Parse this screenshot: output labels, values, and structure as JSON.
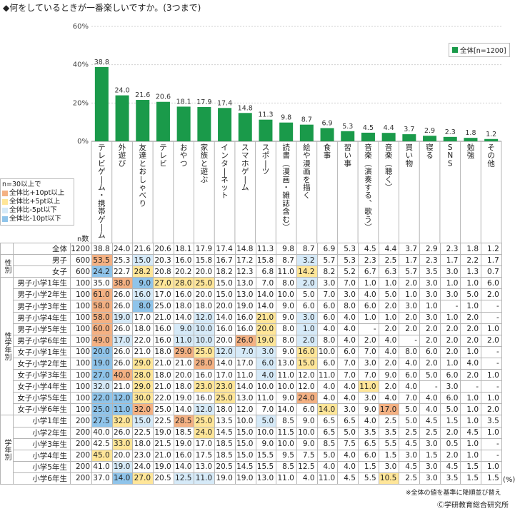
{
  "title": "◆何をしているときが一番楽しいですか。(3つまで)",
  "colors": {
    "bar": "#1a9a4a",
    "hi10": "#f4b183",
    "hi5": "#ffe699",
    "lo5": "#d6eaf8",
    "lo10": "#8fc4ea"
  },
  "legend": {
    "title": "n=30以上で",
    "items": [
      {
        "label": "全体比+10pt以上",
        "color": "#f4b183"
      },
      {
        "label": "全体比+5pt以上",
        "color": "#ffe699"
      },
      {
        "label": "全体比-5pt以下",
        "color": "#d6eaf8"
      },
      {
        "label": "全体比-10pt以下",
        "color": "#8fc4ea"
      }
    ]
  },
  "series_legend": "全体[n=1200]",
  "n_label": "n数",
  "unit": "(%)",
  "note": "※全体の値を基準に降順並び替え",
  "copyright": "Ⓒ学研教育総合研究所",
  "chart_data": {
    "type": "bar",
    "series_name": "全体[n=1200]",
    "ylim": [
      0,
      60
    ],
    "yticks": [
      "0%",
      "20%",
      "40%",
      "60%"
    ],
    "categories": [
      "テレビゲーム・携帯ゲーム",
      "外遊び",
      "友達とおしゃべり",
      "テレビ",
      "おやつ",
      "家族と遊ぶ",
      "インターネット",
      "スマホゲーム",
      "スポーツ",
      "読書(漫画・雑誌含む)",
      "絵や漫画を描く",
      "食事",
      "習い事",
      "音楽(演奏する、歌う)",
      "音楽(聴く)",
      "買い物",
      "寝る",
      "SNS",
      "勉強",
      "その他"
    ],
    "values": [
      38.8,
      24.0,
      21.6,
      20.6,
      18.1,
      17.9,
      17.4,
      14.8,
      11.3,
      9.8,
      8.7,
      6.9,
      5.3,
      4.5,
      4.4,
      3.7,
      2.9,
      2.3,
      1.8,
      1.2
    ]
  },
  "table": {
    "groups": [
      {
        "label": "",
        "rows": [
          {
            "label": "全体",
            "n": "1200",
            "values": [
              "38.8",
              "24.0",
              "21.6",
              "20.6",
              "18.1",
              "17.9",
              "17.4",
              "14.8",
              "11.3",
              "9.8",
              "8.7",
              "6.9",
              "5.3",
              "4.5",
              "4.4",
              "3.7",
              "2.9",
              "2.3",
              "1.8",
              "1.2"
            ]
          }
        ]
      },
      {
        "label": "性別",
        "rows": [
          {
            "label": "男子",
            "n": "600",
            "values": [
              "53.5",
              "25.3",
              "15.0",
              "20.3",
              "16.0",
              "15.8",
              "16.7",
              "17.2",
              "15.8",
              "8.7",
              "3.2",
              "5.7",
              "5.3",
              "2.3",
              "2.5",
              "1.7",
              "2.3",
              "1.7",
              "2.2",
              "1.7"
            ]
          },
          {
            "label": "女子",
            "n": "600",
            "values": [
              "24.2",
              "22.7",
              "28.2",
              "20.8",
              "20.2",
              "20.0",
              "18.2",
              "12.3",
              "6.8",
              "11.0",
              "14.2",
              "8.2",
              "5.2",
              "6.7",
              "6.3",
              "5.7",
              "3.5",
              "3.0",
              "1.3",
              "0.7"
            ]
          }
        ]
      },
      {
        "label": "性学年別",
        "rows": [
          {
            "label": "男子小学1年生",
            "n": "100",
            "values": [
              "35.0",
              "38.0",
              "9.0",
              "27.0",
              "28.0",
              "25.0",
              "15.0",
              "13.0",
              "7.0",
              "8.0",
              "2.0",
              "3.0",
              "7.0",
              "1.0",
              "1.0",
              "2.0",
              "3.0",
              "1.0",
              "1.0",
              "6.0"
            ]
          },
          {
            "label": "男子小学2年生",
            "n": "100",
            "values": [
              "61.0",
              "26.0",
              "16.0",
              "17.0",
              "16.0",
              "20.0",
              "15.0",
              "13.0",
              "14.0",
              "10.0",
              "5.0",
              "7.0",
              "3.0",
              "4.0",
              "5.0",
              "1.0",
              "3.0",
              "3.0",
              "5.0",
              "2.0"
            ]
          },
          {
            "label": "男子小学3年生",
            "n": "100",
            "values": [
              "58.0",
              "26.0",
              "8.0",
              "25.0",
              "18.0",
              "18.0",
              "20.0",
              "19.0",
              "14.0",
              "9.0",
              "6.0",
              "6.0",
              "8.0",
              "6.0",
              "2.0",
              "3.0",
              "1.0",
              "-",
              "1.0",
              "-"
            ]
          },
          {
            "label": "男子小学4年生",
            "n": "100",
            "values": [
              "58.0",
              "19.0",
              "17.0",
              "21.0",
              "14.0",
              "12.0",
              "14.0",
              "16.0",
              "21.0",
              "9.0",
              "3.0",
              "6.0",
              "4.0",
              "1.0",
              "1.0",
              "2.0",
              "3.0",
              "1.0",
              "2.0",
              "-"
            ]
          },
          {
            "label": "男子小学5年生",
            "n": "100",
            "values": [
              "60.0",
              "26.0",
              "18.0",
              "16.0",
              "9.0",
              "10.0",
              "16.0",
              "16.0",
              "20.0",
              "8.0",
              "1.0",
              "4.0",
              "4.0",
              "-",
              "2.0",
              "2.0",
              "2.0",
              "2.0",
              "2.0",
              "1.0"
            ]
          },
          {
            "label": "男子小学6年生",
            "n": "100",
            "values": [
              "49.0",
              "17.0",
              "22.0",
              "16.0",
              "11.0",
              "10.0",
              "20.0",
              "26.0",
              "19.0",
              "8.0",
              "2.0",
              "8.0",
              "4.0",
              "2.0",
              "4.0",
              "-",
              "2.0",
              "2.0",
              "2.0",
              "2.0"
            ]
          },
          {
            "label": "女子小学1年生",
            "n": "100",
            "values": [
              "20.0",
              "26.0",
              "21.0",
              "18.0",
              "29.0",
              "25.0",
              "12.0",
              "7.0",
              "3.0",
              "9.0",
              "16.0",
              "10.0",
              "6.0",
              "7.0",
              "4.0",
              "8.0",
              "6.0",
              "2.0",
              "1.0",
              "-"
            ]
          },
          {
            "label": "女子小学2年生",
            "n": "100",
            "values": [
              "19.0",
              "26.0",
              "29.0",
              "21.0",
              "21.0",
              "28.0",
              "14.0",
              "17.0",
              "6.0",
              "13.0",
              "15.0",
              "6.0",
              "7.0",
              "3.0",
              "2.0",
              "4.0",
              "2.0",
              "1.0",
              "4.0",
              "-"
            ]
          },
          {
            "label": "女子小学3年生",
            "n": "100",
            "values": [
              "27.0",
              "40.0",
              "28.0",
              "18.0",
              "20.0",
              "16.0",
              "17.0",
              "11.0",
              "4.0",
              "11.0",
              "12.0",
              "11.0",
              "7.0",
              "7.0",
              "9.0",
              "6.0",
              "5.0",
              "6.0",
              "2.0",
              "1.0"
            ]
          },
          {
            "label": "女子小学4年生",
            "n": "100",
            "values": [
              "32.0",
              "21.0",
              "29.0",
              "21.0",
              "18.0",
              "23.0",
              "23.0",
              "14.0",
              "10.0",
              "10.0",
              "12.0",
              "4.0",
              "4.0",
              "11.0",
              "2.0",
              "4.0",
              "-",
              "3.0",
              "-",
              "-"
            ]
          },
          {
            "label": "女子小学5年生",
            "n": "100",
            "values": [
              "22.0",
              "12.0",
              "30.0",
              "22.0",
              "19.0",
              "16.0",
              "25.0",
              "13.0",
              "11.0",
              "9.0",
              "24.0",
              "4.0",
              "4.0",
              "3.0",
              "4.0",
              "7.0",
              "4.0",
              "6.0",
              "1.0",
              "1.0"
            ]
          },
          {
            "label": "女子小学6年生",
            "n": "100",
            "values": [
              "25.0",
              "11.0",
              "32.0",
              "25.0",
              "14.0",
              "12.0",
              "18.0",
              "12.0",
              "7.0",
              "14.0",
              "6.0",
              "14.0",
              "3.0",
              "9.0",
              "17.0",
              "5.0",
              "4.0",
              "5.0",
              "1.0",
              "2.0"
            ]
          }
        ]
      },
      {
        "label": "学年別",
        "rows": [
          {
            "label": "小学1年生",
            "n": "200",
            "values": [
              "27.5",
              "32.0",
              "15.0",
              "22.5",
              "28.5",
              "25.0",
              "13.5",
              "10.0",
              "5.0",
              "8.5",
              "9.0",
              "6.5",
              "6.5",
              "4.0",
              "2.5",
              "5.0",
              "4.5",
              "1.5",
              "1.0",
              "3.5"
            ]
          },
          {
            "label": "小学2年生",
            "n": "200",
            "values": [
              "40.0",
              "26.0",
              "22.5",
              "19.0",
              "18.5",
              "24.0",
              "14.5",
              "15.0",
              "10.0",
              "11.5",
              "10.0",
              "6.5",
              "5.0",
              "3.5",
              "3.5",
              "2.5",
              "2.5",
              "2.0",
              "4.5",
              "1.0"
            ]
          },
          {
            "label": "小学3年生",
            "n": "200",
            "values": [
              "42.5",
              "33.0",
              "18.0",
              "21.5",
              "19.0",
              "17.0",
              "18.5",
              "15.0",
              "9.0",
              "10.0",
              "9.0",
              "8.5",
              "7.5",
              "6.5",
              "5.5",
              "4.5",
              "3.0",
              "0.5",
              "1.0",
              "-"
            ]
          },
          {
            "label": "小学4年生",
            "n": "200",
            "values": [
              "45.0",
              "20.0",
              "23.0",
              "21.0",
              "16.0",
              "17.5",
              "18.5",
              "15.0",
              "15.5",
              "9.5",
              "7.5",
              "5.0",
              "4.0",
              "6.0",
              "1.5",
              "3.0",
              "1.5",
              "2.0",
              "1.0",
              "-"
            ]
          },
          {
            "label": "小学5年生",
            "n": "200",
            "values": [
              "41.0",
              "19.0",
              "24.0",
              "19.0",
              "14.0",
              "13.0",
              "20.5",
              "14.5",
              "15.5",
              "8.5",
              "12.5",
              "4.0",
              "4.0",
              "1.5",
              "3.0",
              "4.5",
              "3.0",
              "4.5",
              "1.5",
              "1.0"
            ]
          },
          {
            "label": "小学6年生",
            "n": "200",
            "values": [
              "37.0",
              "14.0",
              "27.0",
              "20.5",
              "12.5",
              "11.0",
              "19.0",
              "19.0",
              "13.0",
              "11.0",
              "4.0",
              "11.0",
              "4.5",
              "5.5",
              "10.5",
              "2.5",
              "3.0",
              "3.5",
              "1.5",
              "1.5"
            ]
          }
        ]
      }
    ]
  }
}
